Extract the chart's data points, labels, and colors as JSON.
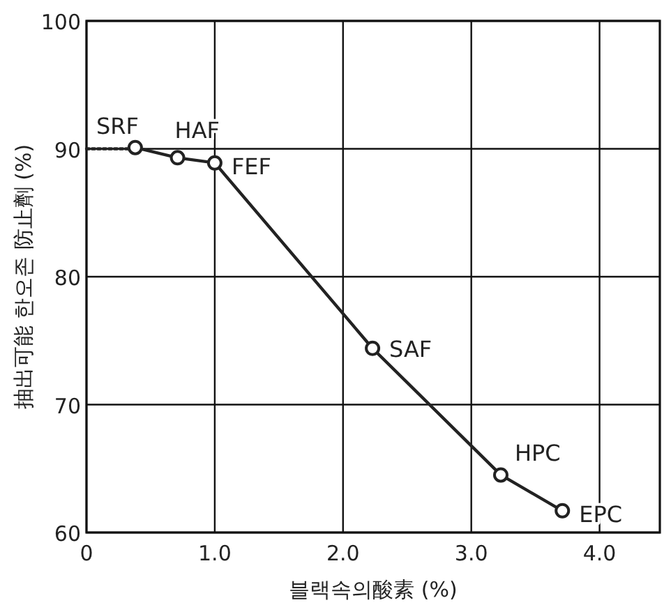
{
  "chart_data": {
    "type": "line",
    "xlabel": "블랙속의酸素 (%)",
    "ylabel": "抽出可能 한오존 防止劑 (%)",
    "xlim": [
      0,
      4.47
    ],
    "xticks": [
      0,
      {
        "value": 1,
        "label": "1.0"
      },
      {
        "value": 2,
        "label": "2.0"
      },
      {
        "value": 3,
        "label": "3.0"
      },
      {
        "value": 4,
        "label": "4.0"
      }
    ],
    "ylim": [
      60,
      100
    ],
    "yticks": [
      60,
      70,
      80,
      90,
      100
    ],
    "grid": true,
    "series": [
      {
        "color": "#222222",
        "x": [
          0,
          0.33
        ],
        "values": [
          90,
          90
        ],
        "line_style": "dotted"
      },
      {
        "color": "#222222",
        "x": [
          0.38,
          0.71,
          1.0,
          2.23,
          3.23,
          3.71
        ],
        "values": [
          90.1,
          89.3,
          88.9,
          74.4,
          64.5,
          61.7
        ],
        "marker": "circle"
      }
    ],
    "annotations": [
      {
        "text": "SRF",
        "x": 0.38,
        "y": 90.1
      },
      {
        "text": "HAF",
        "x": 0.71,
        "y": 89.3
      },
      {
        "text": "FEF",
        "x": 1.0,
        "y": 88.9
      },
      {
        "text": "SAF",
        "x": 2.23,
        "y": 74.4
      },
      {
        "text": "HPC",
        "x": 3.23,
        "y": 64.5
      },
      {
        "text": "EPC",
        "x": 3.71,
        "y": 61.7
      }
    ]
  }
}
